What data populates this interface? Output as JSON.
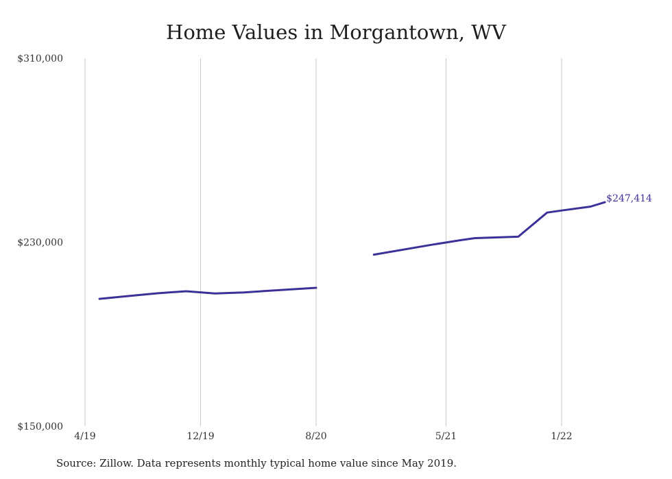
{
  "chart_data": {
    "type": "line",
    "title": "Home Values in Morgantown, WV",
    "xlabel": "",
    "ylabel": "",
    "ylim": [
      150000,
      310000
    ],
    "y_ticks": [
      "$310,000",
      "$230,000",
      "$150,000"
    ],
    "y_tick_values": [
      310000,
      230000,
      150000
    ],
    "x_ticks": [
      "4/19",
      "12/19",
      "8/20",
      "5/21",
      "1/22"
    ],
    "x_tick_dates": [
      "2019-04",
      "2019-12",
      "2020-08",
      "2021-05",
      "2022-01"
    ],
    "grid": "vertical",
    "line_color": "#3b3199",
    "series": [
      {
        "x": [
          "2019-05",
          "2019-07",
          "2019-09",
          "2019-11",
          "2020-01",
          "2020-03",
          "2020-06",
          "2020-08"
        ],
        "values": [
          205400,
          206600,
          207800,
          208700,
          207700,
          208200,
          209400,
          210200
        ]
      },
      {
        "x": [
          "2020-12",
          "2021-04",
          "2021-06",
          "2021-07",
          "2021-10",
          "2021-12",
          "2022-01",
          "2022-03",
          "2022-04"
        ],
        "values": [
          224600,
          228900,
          230900,
          231800,
          232400,
          242900,
          243800,
          245500,
          247414
        ]
      }
    ],
    "annotations": [
      {
        "label": "$247,414",
        "value": 247414,
        "x": "2022-04"
      }
    ]
  },
  "source": "Source: Zillow. Data represents monthly typical home value since May 2019."
}
